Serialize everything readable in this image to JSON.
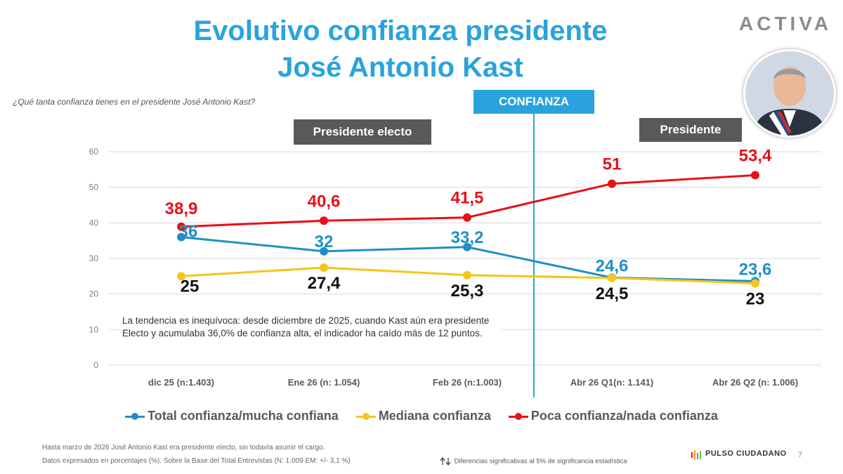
{
  "title_line1": "Evolutivo confianza presidente",
  "title_line2": "José Antonio Kast",
  "brand_logo": "ACTIVA",
  "question": "¿Qué tanta confianza tienes en el presidente José Antonio Kast?",
  "tags": {
    "confianza": "CONFIANZA",
    "presidente_electo": "Presidente electo",
    "presidente": "Presidente"
  },
  "note": "La tendencia es inequívoca: desde diciembre de 2025, cuando Kast aún era presidente Electo y acumulaba 36,0% de confianza alta, el indicador ha caído más de 12 puntos.",
  "legend": [
    {
      "label": "Total confianza/mucha confiana",
      "color": "#1e90c6"
    },
    {
      "label": "Mediana confianza",
      "color": "#f5c518"
    },
    {
      "label": "Poca confianza/nada confianza",
      "color": "#e8101a"
    }
  ],
  "footnote1": "Hasta marzo de 2026 José Antonio Kast era presidente electo, sin todavía asumir el cargo.",
  "footnote2": "Datos expresados en porcentajes (%). Sobre la Base del Total Entrevistas (N: 1.009  EM: +/- 3,1 %)",
  "footnote3": "Diferencias significativas al 5% de significancia estadística",
  "brand_footer": "PULSO CIUDADANO",
  "page_number": "7",
  "chart_data": {
    "type": "line",
    "categories": [
      "dic 25 (n:1.403)",
      "Ene 26 (n: 1.054)",
      "Feb 26 (n:1.003)",
      "Abr 26  Q1(n: 1.141)",
      "Abr 26 Q2 (n: 1.006)"
    ],
    "ylim": [
      0,
      60
    ],
    "yticks": [
      "0",
      "10",
      "20",
      "30",
      "40",
      "50",
      "60"
    ],
    "grid": true,
    "legend_position": "bottom",
    "series": [
      {
        "name": "Total confianza/mucha confiana",
        "color": "#1e90c6",
        "values": [
          36,
          32,
          33.2,
          24.6,
          23.6
        ],
        "labels": [
          "36",
          "32",
          "33,2",
          "24,6",
          "23,6"
        ]
      },
      {
        "name": "Mediana confianza",
        "color": "#f5c518",
        "values": [
          25,
          27.4,
          25.3,
          24.5,
          23
        ],
        "labels": [
          "25",
          "27,4",
          "25,3",
          "24,5",
          "23"
        ]
      },
      {
        "name": "Poca confianza/nada confianza",
        "color": "#e8101a",
        "values": [
          38.9,
          40.6,
          41.5,
          51,
          53.4
        ],
        "labels": [
          "38,9",
          "40,6",
          "41,5",
          "51",
          "53,4"
        ]
      }
    ]
  }
}
